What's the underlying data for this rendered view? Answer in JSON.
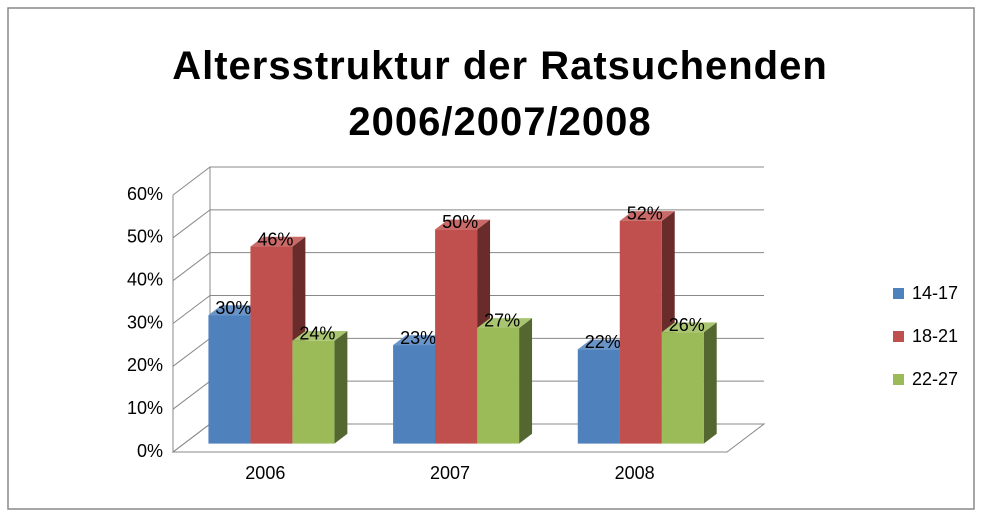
{
  "chart_data": {
    "type": "bar3d",
    "title": "Altersstruktur der Ratsuchenden 2006/2007/2008",
    "categories": [
      "2006",
      "2007",
      "2008"
    ],
    "series": [
      {
        "name": "14-17",
        "color": "#4f81bd",
        "values": [
          30,
          23,
          22
        ],
        "value_labels": [
          "30%",
          "23%",
          "22%"
        ]
      },
      {
        "name": "18-21",
        "color": "#c0504d",
        "values": [
          46,
          50,
          52
        ],
        "value_labels": [
          "46%",
          "50%",
          "52%"
        ]
      },
      {
        "name": "22-27",
        "color": "#9bbb59",
        "values": [
          24,
          27,
          26
        ],
        "value_labels": [
          "24%",
          "27%",
          "26%"
        ]
      }
    ],
    "ylim": [
      0,
      60
    ],
    "yticks": [
      {
        "value": 0,
        "label": "0%"
      },
      {
        "value": 10,
        "label": "10%"
      },
      {
        "value": 20,
        "label": "20%"
      },
      {
        "value": 30,
        "label": "30%"
      },
      {
        "value": 40,
        "label": "40%"
      },
      {
        "value": 50,
        "label": "50%"
      },
      {
        "value": 60,
        "label": "60%"
      }
    ],
    "grid": true,
    "legend": "right"
  }
}
